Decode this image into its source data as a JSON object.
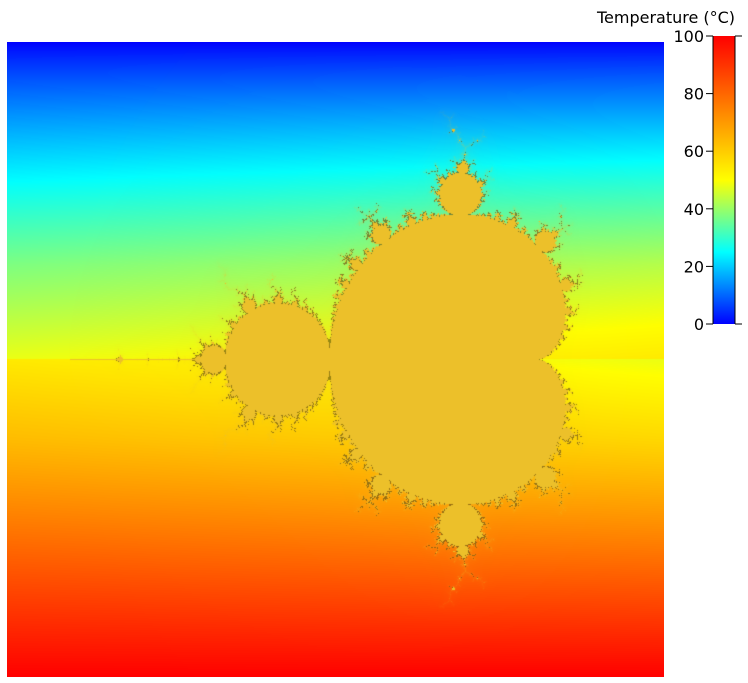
{
  "chart_data": {
    "type": "heatmap",
    "title": "",
    "xlabel": "",
    "ylabel": "",
    "colorbar": {
      "label": "Temperature (°C)",
      "range": [
        0,
        100
      ],
      "ticks": [
        "0",
        "20",
        "40",
        "60",
        "80",
        "100"
      ],
      "colormap": "jet",
      "colors": [
        "#0000ff",
        "#00ffff",
        "#ffff00",
        "#ff8000",
        "#ff0000"
      ]
    },
    "field": {
      "description_gradient": "vertical",
      "top_value": 0,
      "upper_mid_value": 40,
      "lower_mid_value": 60,
      "bottom_value": 100
    },
    "mask": {
      "shape": "mandelbrot-set",
      "fill_color": "#ecc02a",
      "x_range": [
        -2.3,
        0.85
      ],
      "y_range": [
        -1.43,
        1.43
      ],
      "max_iterations": 60
    },
    "grid": false,
    "axes_visible": false,
    "legend": "colorbar-right"
  }
}
